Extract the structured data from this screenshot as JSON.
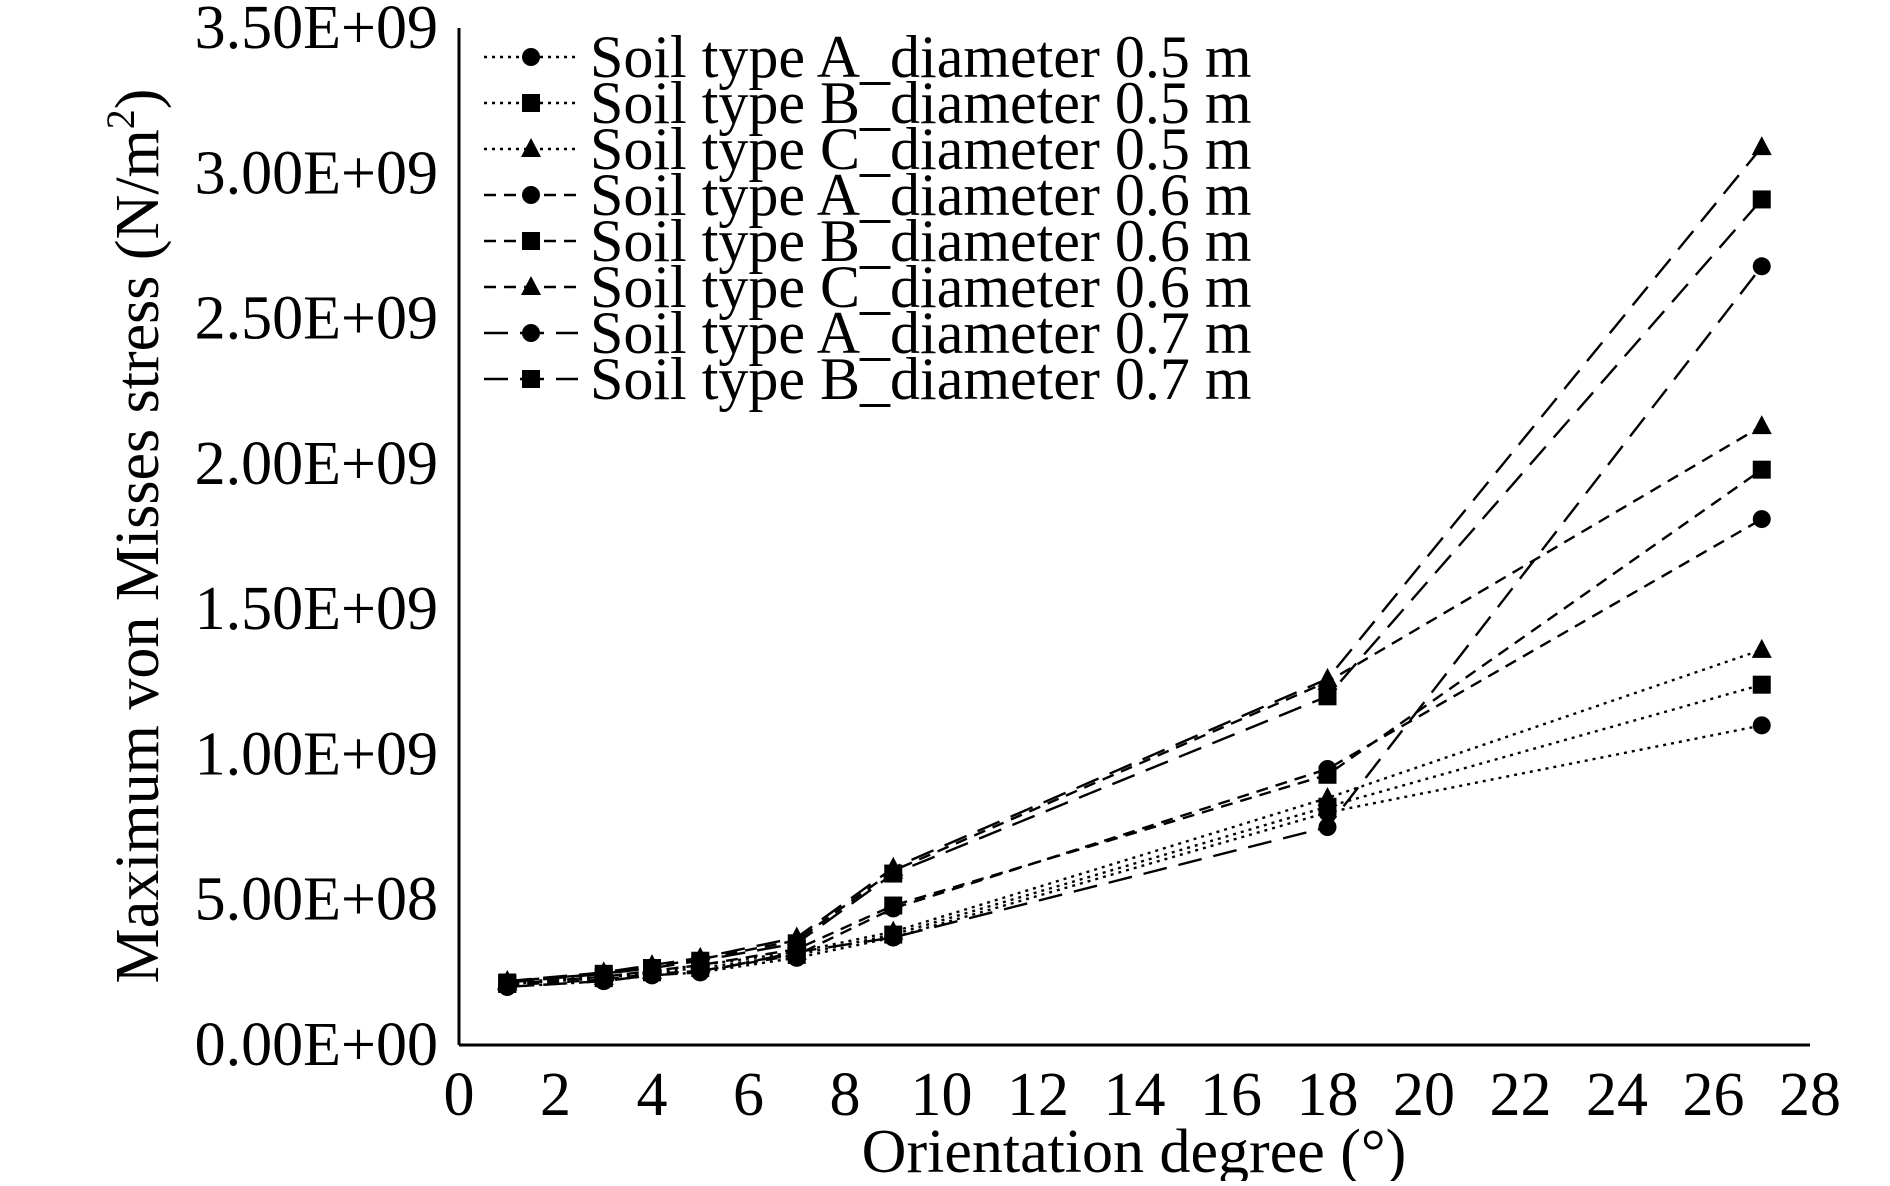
{
  "chart_data": {
    "type": "line",
    "xlabel": "Orientation degree (°)",
    "ylabel_main": "Maximum von Misses stress (N/m",
    "ylabel_sup": "2",
    "ylabel_tail": ")",
    "xlim": [
      0,
      28
    ],
    "ylim": [
      0,
      3500000000
    ],
    "x_ticks": [
      0,
      2,
      4,
      6,
      8,
      10,
      12,
      14,
      16,
      18,
      20,
      22,
      24,
      26,
      28
    ],
    "x_tick_labels": [
      "0",
      "2",
      "4",
      "6",
      "8",
      "10",
      "12",
      "14",
      "16",
      "18",
      "20",
      "22",
      "24",
      "26",
      "28"
    ],
    "y_ticks": [
      0,
      500000000,
      1000000000,
      1500000000,
      2000000000,
      2500000000,
      3000000000,
      3500000000
    ],
    "y_tick_labels": [
      "0.00E+00",
      "5.00E+08",
      "1.00E+09",
      "1.50E+09",
      "2.00E+09",
      "2.50E+09",
      "3.00E+09",
      "3.50E+09"
    ],
    "grid": false,
    "legend_position": "top-left",
    "x": [
      1,
      3,
      4,
      5,
      7,
      9,
      18,
      27
    ],
    "series": [
      {
        "name": "Soil type A_diameter 0.5 m",
        "marker": "circle",
        "dash": "dotted",
        "values": [
          200000000,
          220000000,
          240000000,
          250000000,
          300000000,
          370000000,
          800000000,
          1100000000
        ]
      },
      {
        "name": "Soil type B_diameter 0.5 m",
        "marker": "square",
        "dash": "dotted",
        "values": [
          210000000,
          230000000,
          250000000,
          265000000,
          310000000,
          380000000,
          820000000,
          1240000000
        ]
      },
      {
        "name": "Soil type C_diameter 0.5 m",
        "marker": "triangle",
        "dash": "dotted",
        "values": [
          215000000,
          235000000,
          255000000,
          275000000,
          320000000,
          390000000,
          850000000,
          1360000000
        ]
      },
      {
        "name": "Soil type A_diameter 0.6 m",
        "marker": "circle",
        "dash": "short-dash",
        "values": [
          205000000,
          225000000,
          245000000,
          255000000,
          310000000,
          470000000,
          950000000,
          1810000000
        ]
      },
      {
        "name": "Soil type B_diameter 0.6 m",
        "marker": "square",
        "dash": "short-dash",
        "values": [
          210000000,
          235000000,
          255000000,
          275000000,
          330000000,
          480000000,
          930000000,
          1980000000
        ]
      },
      {
        "name": "Soil type C_diameter 0.6 m",
        "marker": "triangle",
        "dash": "short-dash",
        "values": [
          220000000,
          245000000,
          270000000,
          295000000,
          360000000,
          600000000,
          1250000000,
          2130000000
        ]
      },
      {
        "name": "Soil type A_diameter 0.7 m",
        "marker": "circle",
        "dash": "long-dash",
        "values": [
          200000000,
          220000000,
          240000000,
          250000000,
          320000000,
          370000000,
          750000000,
          2680000000
        ]
      },
      {
        "name": "Soil type B_diameter 0.7 m",
        "marker": "square",
        "dash": "long-dash",
        "values": [
          215000000,
          245000000,
          265000000,
          290000000,
          350000000,
          590000000,
          1200000000,
          2910000000
        ]
      },
      {
        "name": "",
        "marker": "triangle",
        "dash": "long-dash",
        "values": [
          220000000,
          250000000,
          275000000,
          300000000,
          370000000,
          610000000,
          1260000000,
          3090000000
        ]
      }
    ]
  }
}
